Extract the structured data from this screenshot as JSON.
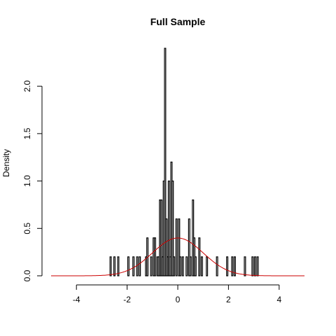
{
  "chart_data": {
    "type": "bar",
    "title": "Full Sample",
    "xlabel": "",
    "ylabel": "Density",
    "xlim": [
      -5,
      5
    ],
    "ylim": [
      0,
      2.4
    ],
    "x_ticks": [
      -4,
      -2,
      0,
      2,
      4
    ],
    "x_tick_labels": [
      "-4",
      "-2",
      "0",
      "2",
      "4"
    ],
    "y_ticks": [
      0,
      0.5,
      1,
      1.5,
      2
    ],
    "y_tick_labels": [
      "0.0",
      "0.5",
      "1.0",
      "1.5",
      "2.0"
    ],
    "grid": false,
    "bin_width": 0.05,
    "histogram": [
      {
        "x": -2.65,
        "density": 0.2
      },
      {
        "x": -2.5,
        "density": 0.2
      },
      {
        "x": -2.35,
        "density": 0.2
      },
      {
        "x": -1.95,
        "density": 0.2
      },
      {
        "x": -1.75,
        "density": 0.2
      },
      {
        "x": -1.6,
        "density": 0.2
      },
      {
        "x": -1.5,
        "density": 0.2
      },
      {
        "x": -1.25,
        "density": 0.2
      },
      {
        "x": -1.2,
        "density": 0.4
      },
      {
        "x": -1.05,
        "density": 0.2
      },
      {
        "x": -0.95,
        "density": 0.4
      },
      {
        "x": -0.9,
        "density": 0.4
      },
      {
        "x": -0.8,
        "density": 0.2
      },
      {
        "x": -0.75,
        "density": 0.2
      },
      {
        "x": -0.7,
        "density": 0.8
      },
      {
        "x": -0.65,
        "density": 0.8
      },
      {
        "x": -0.6,
        "density": 0.2
      },
      {
        "x": -0.55,
        "density": 1.0
      },
      {
        "x": -0.5,
        "density": 2.4
      },
      {
        "x": -0.45,
        "density": 0.6
      },
      {
        "x": -0.4,
        "density": 0.2
      },
      {
        "x": -0.35,
        "density": 1.0
      },
      {
        "x": -0.3,
        "density": 0.2
      },
      {
        "x": -0.25,
        "density": 1.2
      },
      {
        "x": -0.2,
        "density": 1.0
      },
      {
        "x": -0.15,
        "density": 0.2
      },
      {
        "x": -0.05,
        "density": 0.6
      },
      {
        "x": 0.05,
        "density": 0.6
      },
      {
        "x": 0.1,
        "density": 0.2
      },
      {
        "x": 0.2,
        "density": 0.2
      },
      {
        "x": 0.35,
        "density": 0.2
      },
      {
        "x": 0.45,
        "density": 0.6
      },
      {
        "x": 0.5,
        "density": 0.2
      },
      {
        "x": 0.6,
        "density": 0.8
      },
      {
        "x": 0.65,
        "density": 0.4
      },
      {
        "x": 0.7,
        "density": 0.2
      },
      {
        "x": 0.85,
        "density": 0.4
      },
      {
        "x": 0.95,
        "density": 0.2
      },
      {
        "x": 1.15,
        "density": 0.2
      },
      {
        "x": 1.55,
        "density": 0.2
      },
      {
        "x": 1.95,
        "density": 0.2
      },
      {
        "x": 2.15,
        "density": 0.2
      },
      {
        "x": 2.25,
        "density": 0.2
      },
      {
        "x": 2.65,
        "density": 0.2
      },
      {
        "x": 2.95,
        "density": 0.2
      },
      {
        "x": 3.05,
        "density": 0.2
      },
      {
        "x": 3.15,
        "density": 0.2
      }
    ],
    "overlay": {
      "type": "line",
      "description": "normal density curve",
      "color": "#cc0000",
      "mean": 0,
      "sd": 1,
      "x_range": [
        -5,
        5
      ]
    },
    "bar_color": "#000000"
  }
}
